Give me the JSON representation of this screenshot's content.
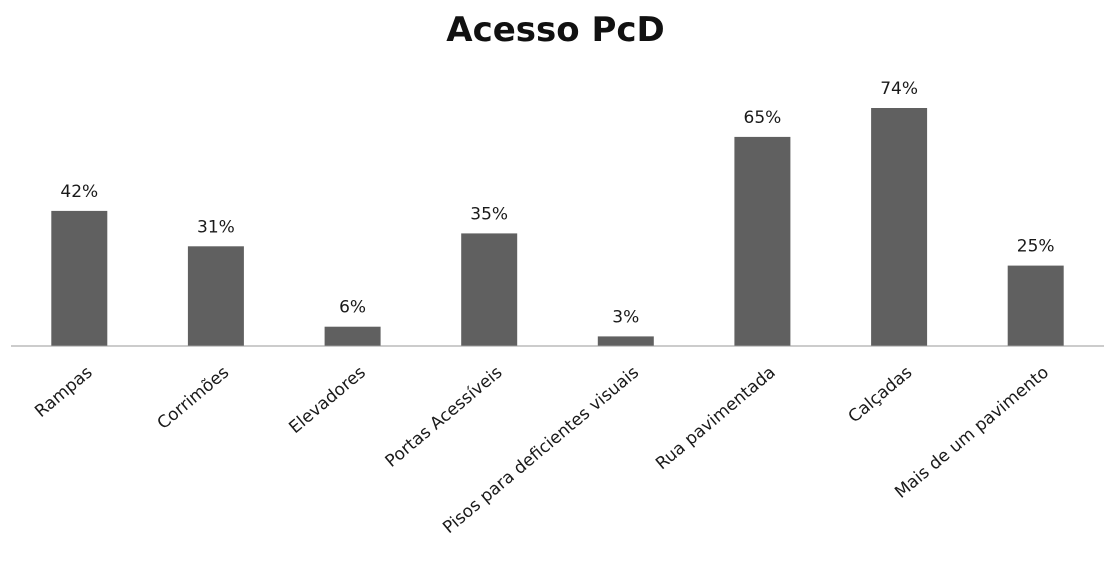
{
  "chart_data": {
    "type": "bar",
    "title": "Acesso PcD",
    "xlabel": "",
    "ylabel": "",
    "categories": [
      "Rampas",
      "Corrimões",
      "Elevadores",
      "Portas Acessíveis",
      "Pisos para deficientes visuais",
      "Rua pavimentada",
      "Calçadas",
      "Mais de um pavimento"
    ],
    "values": [
      42,
      31,
      6,
      35,
      3,
      65,
      74,
      25
    ],
    "data_labels": [
      "42%",
      "31%",
      "6%",
      "35%",
      "3%",
      "65%",
      "74%",
      "25%"
    ],
    "value_unit": "%",
    "ylim": [
      0,
      74
    ],
    "grid": false,
    "legend": "none",
    "bar_color": "#606060"
  }
}
